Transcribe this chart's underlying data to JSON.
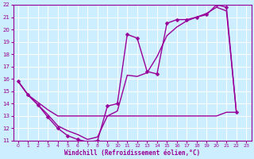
{
  "bg_color": "#cceeff",
  "grid_color": "#ffffff",
  "line_color": "#990099",
  "markersize": 2.5,
  "linewidth": 1.0,
  "xlabel": "Windchill (Refroidissement éolien,°C)",
  "xlim": [
    -0.5,
    23.5
  ],
  "ylim": [
    11,
    22
  ],
  "xticks": [
    0,
    1,
    2,
    3,
    4,
    5,
    6,
    7,
    8,
    9,
    10,
    11,
    12,
    13,
    14,
    15,
    16,
    17,
    18,
    19,
    20,
    21,
    22,
    23
  ],
  "yticks": [
    11,
    12,
    13,
    14,
    15,
    16,
    17,
    18,
    19,
    20,
    21,
    22
  ],
  "line1_x": [
    0,
    1,
    2,
    3,
    4,
    5,
    6,
    7,
    8,
    9,
    10,
    11,
    12,
    13,
    14,
    15,
    16,
    17,
    18,
    19,
    20,
    21,
    22
  ],
  "line1_y": [
    15.8,
    14.7,
    13.9,
    13.1,
    12.2,
    11.8,
    11.5,
    11.1,
    11.3,
    13.0,
    13.4,
    16.3,
    16.2,
    16.5,
    17.8,
    19.5,
    20.2,
    20.7,
    21.0,
    21.3,
    21.8,
    21.5,
    13.3
  ],
  "line2_x": [
    0,
    1,
    2,
    3,
    4,
    5,
    6,
    7,
    8,
    9,
    10,
    11,
    12,
    13,
    14,
    15,
    16,
    17,
    18,
    19,
    20,
    21,
    22
  ],
  "line2_y": [
    15.8,
    14.7,
    14.1,
    13.5,
    13.0,
    13.0,
    13.0,
    13.0,
    13.0,
    13.0,
    13.0,
    13.0,
    13.0,
    13.0,
    13.0,
    13.0,
    13.0,
    13.0,
    13.0,
    13.0,
    13.0,
    13.3,
    13.3
  ],
  "line3_x": [
    0,
    1,
    2,
    3,
    4,
    5,
    6,
    7,
    8,
    9,
    10,
    11,
    12,
    13,
    14,
    15,
    16,
    17,
    18,
    19,
    20,
    21,
    22
  ],
  "line3_y": [
    15.8,
    14.7,
    13.9,
    12.9,
    12.0,
    11.4,
    11.1,
    10.9,
    11.0,
    13.8,
    14.0,
    19.6,
    19.3,
    16.6,
    16.4,
    20.5,
    20.8,
    20.8,
    21.0,
    21.2,
    22.0,
    21.8,
    13.3
  ]
}
